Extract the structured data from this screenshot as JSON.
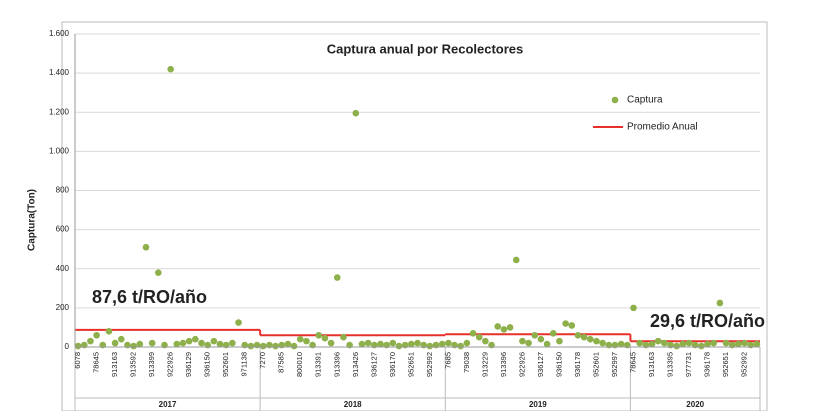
{
  "chart_data": {
    "type": "scatter",
    "title": "Captura anual por  Recolectores",
    "y_label": "Captura(Ton)",
    "ylim": [
      0,
      1600
    ],
    "yticks": [
      0,
      200,
      400,
      600,
      800,
      {
        "value": 1000,
        "label": "1.000"
      },
      {
        "value": 1200,
        "label": "1.200"
      },
      {
        "value": 1400,
        "label": "1.400"
      },
      {
        "value": 1600,
        "label": "1.600"
      }
    ],
    "grid": true,
    "legend": "upper right",
    "series": [
      {
        "name": "Captura",
        "color": "#8db04a"
      },
      {
        "name": "Promedio Anual",
        "color": "#e8302a"
      }
    ],
    "groups": [
      {
        "name": "2017",
        "average": 87.6,
        "average_label": "87,6 t/RO/año",
        "categories": [
          "6078",
          null,
          null,
          "78645",
          null,
          null,
          "913163",
          null,
          null,
          "913592",
          null,
          null,
          "913399",
          null,
          null,
          "922926",
          null,
          null,
          "936129",
          null,
          null,
          "936150",
          null,
          null,
          "952601",
          null,
          null,
          "971138",
          null,
          null
        ],
        "values": [
          5,
          10,
          30,
          60,
          10,
          80,
          20,
          40,
          10,
          5,
          15,
          510,
          20,
          380,
          10,
          1420,
          15,
          20,
          30,
          40,
          20,
          10,
          30,
          15,
          10,
          20,
          125,
          10,
          5,
          10
        ]
      },
      {
        "name": "2018",
        "average": 60,
        "categories": [
          "7270",
          null,
          null,
          "87585",
          null,
          null,
          "800010",
          null,
          null,
          "913391",
          null,
          null,
          "913396",
          null,
          null,
          "913426",
          null,
          null,
          "936127",
          null,
          null,
          "936170",
          null,
          null,
          "952651",
          null,
          null,
          "952992",
          null,
          null
        ],
        "values": [
          5,
          10,
          5,
          10,
          15,
          5,
          40,
          30,
          10,
          60,
          45,
          20,
          355,
          50,
          10,
          1195,
          15,
          20,
          10,
          15,
          10,
          20,
          5,
          10,
          15,
          20,
          10,
          5,
          10,
          15
        ]
      },
      {
        "name": "2019",
        "average": 65,
        "categories": [
          "7685",
          null,
          null,
          "79038",
          null,
          null,
          "913229",
          null,
          null,
          "913396",
          null,
          null,
          "922926",
          null,
          null,
          "936127",
          null,
          null,
          "936150",
          null,
          null,
          "936178",
          null,
          null,
          "952601",
          null,
          null,
          "952997",
          null,
          null
        ],
        "values": [
          20,
          10,
          5,
          20,
          70,
          50,
          30,
          10,
          105,
          90,
          100,
          445,
          30,
          20,
          60,
          40,
          15,
          70,
          30,
          120,
          110,
          60,
          50,
          40,
          30,
          20,
          10,
          10,
          15,
          10
        ]
      },
      {
        "name": "2020",
        "average": 29.6,
        "average_label": "29,6 t/RO/año",
        "categories": [
          "78645",
          null,
          null,
          "913163",
          null,
          null,
          "913395",
          null,
          null,
          "977731",
          null,
          null,
          "936178",
          null,
          null,
          "952651",
          null,
          null,
          "952992",
          null,
          null
        ],
        "values": [
          200,
          20,
          10,
          15,
          30,
          20,
          10,
          5,
          15,
          20,
          10,
          5,
          15,
          20,
          225,
          20,
          10,
          15,
          20,
          10,
          15
        ]
      }
    ]
  }
}
